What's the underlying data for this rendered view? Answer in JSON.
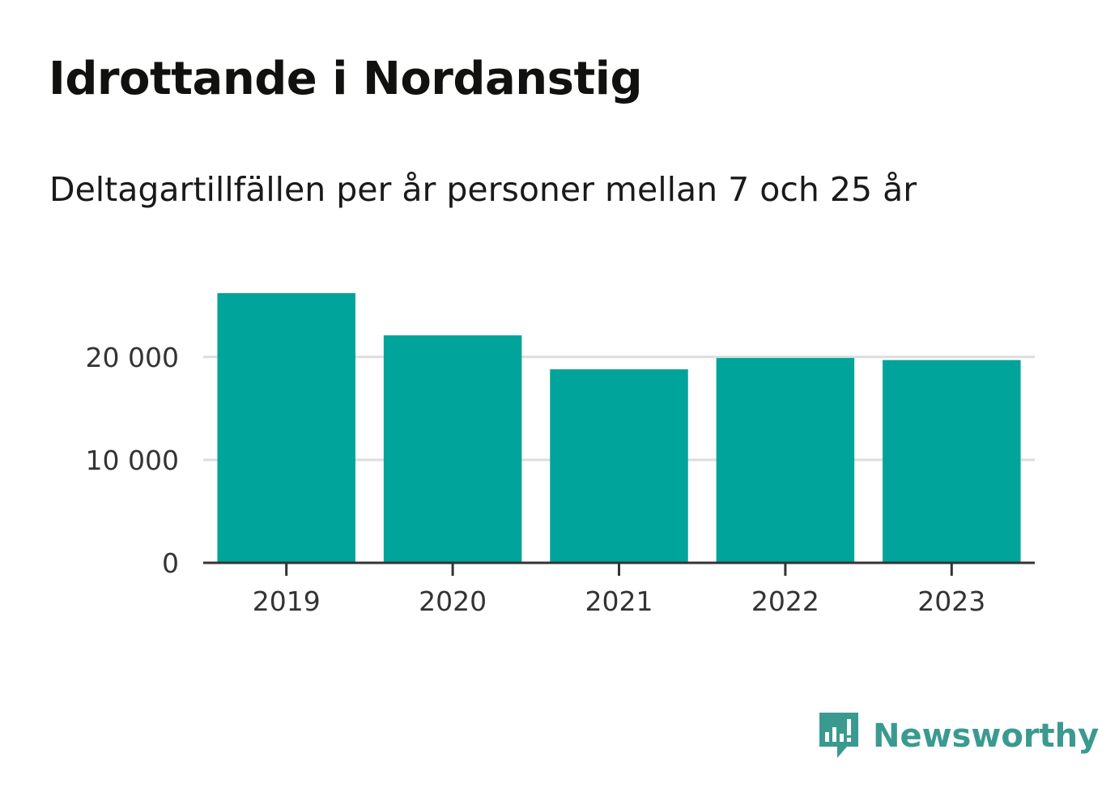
{
  "chart_data": {
    "type": "bar",
    "title": "Idrottande i Nordanstig",
    "subtitle": "Deltagartillfällen per år personer mellan 7 och 25 år",
    "categories": [
      "2019",
      "2020",
      "2021",
      "2022",
      "2023"
    ],
    "values": [
      26200,
      22100,
      18800,
      19900,
      19700
    ],
    "ylim": [
      0,
      26200
    ],
    "yticks": [
      0,
      10000,
      20000
    ],
    "ytick_labels": [
      "0",
      "10 000",
      "20 000"
    ],
    "xlabel": "",
    "ylabel": "",
    "grid": true,
    "bar_color": "#00a49a"
  },
  "brand": {
    "name": "Newsworthy",
    "icon": "newsworthy-logo-icon",
    "color": "#3a9a90"
  }
}
